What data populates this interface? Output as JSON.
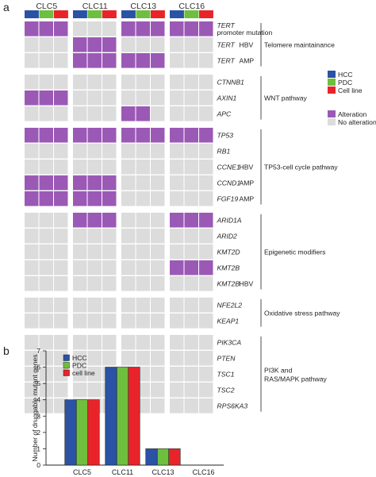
{
  "panel_a_label": "a",
  "panel_b_label": "b",
  "samples": [
    "CLC5",
    "CLC11",
    "CLC13",
    "CLC16"
  ],
  "models": [
    "HCC",
    "PDC",
    "Cell line"
  ],
  "colors": {
    "hcc": "#2a52a5",
    "pdc": "#6fbf3e",
    "cell_line": "#e8242a",
    "alteration": "#9b59b6",
    "no_alteration": "#dcdcdc"
  },
  "legend_models": [
    {
      "label": "HCC",
      "color": "#2a52a5"
    },
    {
      "label": "PDC",
      "color": "#6fbf3e"
    },
    {
      "label": "Cell line",
      "color": "#e8242a"
    }
  ],
  "legend_status": [
    {
      "label": "Alteration",
      "color": "#9b59b6"
    },
    {
      "label": "No alteration",
      "color": "#dcdcdc"
    }
  ],
  "pathways": [
    {
      "name": "Telomere maintainance",
      "genes": [
        {
          "gene": "TERT",
          "gene2": "promoter mutation",
          "note": "",
          "alt": [
            [
              1,
              1,
              1
            ],
            [
              0,
              0,
              0
            ],
            [
              1,
              1,
              1
            ],
            [
              1,
              1,
              1
            ]
          ]
        },
        {
          "gene": "TERT",
          "note": "HBV",
          "alt": [
            [
              0,
              0,
              0
            ],
            [
              1,
              1,
              1
            ],
            [
              0,
              0,
              0
            ],
            [
              0,
              0,
              0
            ]
          ]
        },
        {
          "gene": "TERT",
          "note": "AMP",
          "alt": [
            [
              0,
              0,
              0
            ],
            [
              1,
              1,
              1
            ],
            [
              1,
              1,
              1
            ],
            [
              0,
              0,
              0
            ]
          ]
        }
      ]
    },
    {
      "name": "WNT pathway",
      "genes": [
        {
          "gene": "CTNNB1",
          "note": "",
          "alt": [
            [
              0,
              0,
              0
            ],
            [
              0,
              0,
              0
            ],
            [
              0,
              0,
              0
            ],
            [
              0,
              0,
              0
            ]
          ]
        },
        {
          "gene": "AXIN1",
          "note": "",
          "alt": [
            [
              1,
              1,
              1
            ],
            [
              0,
              0,
              0
            ],
            [
              0,
              0,
              0
            ],
            [
              0,
              0,
              0
            ]
          ]
        },
        {
          "gene": "APC",
          "note": "",
          "alt": [
            [
              0,
              0,
              0
            ],
            [
              0,
              0,
              0
            ],
            [
              1,
              1,
              0
            ],
            [
              0,
              0,
              0
            ]
          ]
        }
      ]
    },
    {
      "name": "TP53-cell cycle pathway",
      "genes": [
        {
          "gene": "TP53",
          "note": "",
          "alt": [
            [
              1,
              1,
              1
            ],
            [
              1,
              1,
              1
            ],
            [
              1,
              1,
              1
            ],
            [
              1,
              1,
              1
            ]
          ]
        },
        {
          "gene": "RB1",
          "note": "",
          "alt": [
            [
              0,
              0,
              0
            ],
            [
              0,
              0,
              0
            ],
            [
              0,
              0,
              0
            ],
            [
              0,
              0,
              0
            ]
          ]
        },
        {
          "gene": "CCNE1",
          "note": "HBV",
          "alt": [
            [
              0,
              0,
              0
            ],
            [
              0,
              0,
              0
            ],
            [
              0,
              0,
              0
            ],
            [
              0,
              0,
              0
            ]
          ]
        },
        {
          "gene": "CCND1",
          "note": "AMP",
          "alt": [
            [
              1,
              1,
              1
            ],
            [
              1,
              1,
              1
            ],
            [
              0,
              0,
              0
            ],
            [
              0,
              0,
              0
            ]
          ]
        },
        {
          "gene": "FGF19",
          "note": "AMP",
          "alt": [
            [
              1,
              1,
              1
            ],
            [
              1,
              1,
              1
            ],
            [
              0,
              0,
              0
            ],
            [
              0,
              0,
              0
            ]
          ]
        }
      ]
    },
    {
      "name": "Epigenetic modifiers",
      "genes": [
        {
          "gene": "ARID1A",
          "note": "",
          "alt": [
            [
              0,
              0,
              0
            ],
            [
              1,
              1,
              1
            ],
            [
              0,
              0,
              0
            ],
            [
              1,
              1,
              1
            ]
          ]
        },
        {
          "gene": "ARID2",
          "note": "",
          "alt": [
            [
              0,
              0,
              0
            ],
            [
              0,
              0,
              0
            ],
            [
              0,
              0,
              0
            ],
            [
              0,
              0,
              0
            ]
          ]
        },
        {
          "gene": "KMT2D",
          "note": "",
          "alt": [
            [
              0,
              0,
              0
            ],
            [
              0,
              0,
              0
            ],
            [
              0,
              0,
              0
            ],
            [
              0,
              0,
              0
            ]
          ]
        },
        {
          "gene": "KMT2B",
          "note": "",
          "alt": [
            [
              0,
              0,
              0
            ],
            [
              0,
              0,
              0
            ],
            [
              0,
              0,
              0
            ],
            [
              1,
              1,
              1
            ]
          ]
        },
        {
          "gene": "KMT2B",
          "note": "HBV",
          "alt": [
            [
              0,
              0,
              0
            ],
            [
              0,
              0,
              0
            ],
            [
              0,
              0,
              0
            ],
            [
              0,
              0,
              0
            ]
          ]
        }
      ]
    },
    {
      "name": "Oxidative stress pathway",
      "genes": [
        {
          "gene": "NFE2L2",
          "note": "",
          "alt": [
            [
              0,
              0,
              0
            ],
            [
              0,
              0,
              0
            ],
            [
              0,
              0,
              0
            ],
            [
              0,
              0,
              0
            ]
          ]
        },
        {
          "gene": "KEAP1",
          "note": "",
          "alt": [
            [
              0,
              0,
              0
            ],
            [
              0,
              0,
              0
            ],
            [
              0,
              0,
              0
            ],
            [
              0,
              0,
              0
            ]
          ]
        }
      ]
    },
    {
      "name": "PI3K and",
      "name2": "RAS/MAPK pathway",
      "genes": [
        {
          "gene": "PIK3CA",
          "note": "",
          "alt": [
            [
              0,
              0,
              0
            ],
            [
              0,
              0,
              0
            ],
            [
              0,
              0,
              0
            ],
            [
              0,
              0,
              0
            ]
          ]
        },
        {
          "gene": "PTEN",
          "note": "",
          "alt": [
            [
              0,
              0,
              0
            ],
            [
              0,
              0,
              0
            ],
            [
              0,
              0,
              0
            ],
            [
              0,
              0,
              0
            ]
          ]
        },
        {
          "gene": "TSC1",
          "note": "",
          "alt": [
            [
              0,
              0,
              0
            ],
            [
              0,
              0,
              0
            ],
            [
              0,
              0,
              0
            ],
            [
              0,
              0,
              0
            ]
          ]
        },
        {
          "gene": "TSC2",
          "note": "",
          "alt": [
            [
              0,
              0,
              0
            ],
            [
              0,
              0,
              0
            ],
            [
              0,
              0,
              0
            ],
            [
              0,
              0,
              0
            ]
          ]
        },
        {
          "gene": "RPS6KA3",
          "note": "",
          "alt": [
            [
              0,
              0,
              0
            ],
            [
              0,
              0,
              0
            ],
            [
              0,
              0,
              0
            ],
            [
              0,
              0,
              0
            ]
          ]
        }
      ]
    }
  ],
  "chart_data": {
    "type": "bar",
    "categories": [
      "CLC5",
      "CLC11",
      "CLC13",
      "CLC16"
    ],
    "series": [
      {
        "name": "HCC",
        "color": "#2a52a5",
        "values": [
          4,
          6,
          1,
          0
        ]
      },
      {
        "name": "PDC",
        "color": "#6fbf3e",
        "values": [
          4,
          6,
          1,
          0
        ]
      },
      {
        "name": "cell line",
        "color": "#e8242a",
        "values": [
          4,
          6,
          1,
          0
        ]
      }
    ],
    "title": "",
    "xlabel": "",
    "ylabel": "Number of druggable mutant genes",
    "ylim": [
      0,
      7
    ],
    "yticks": [
      "0",
      "1",
      "2",
      "3",
      "4",
      "5",
      "6",
      "7"
    ],
    "legend_position": "top-left",
    "grid": false
  }
}
